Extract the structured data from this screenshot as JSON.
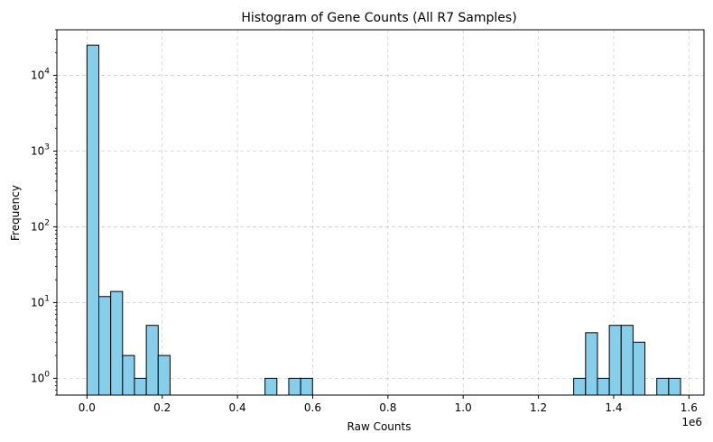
{
  "chart_data": {
    "type": "bar",
    "title": "Histogram of Gene Counts (All R7 Samples)",
    "xlabel": "Raw Counts",
    "ylabel": "Frequency",
    "x_offset_label": "1e6",
    "y_scale": "log",
    "ylim": [
      0.6,
      40000
    ],
    "xlim": [
      -0.08,
      1.64
    ],
    "grid": true,
    "bar_color": "#87ceeb",
    "bar_edge_color": "#000000",
    "bin_width": 0.03155,
    "bins": [
      {
        "x0": 0.0,
        "count": 25000
      },
      {
        "x0": 0.0316,
        "count": 12
      },
      {
        "x0": 0.0631,
        "count": 14
      },
      {
        "x0": 0.0947,
        "count": 2
      },
      {
        "x0": 0.1262,
        "count": 1
      },
      {
        "x0": 0.1578,
        "count": 5
      },
      {
        "x0": 0.1893,
        "count": 2
      },
      {
        "x0": 0.4733,
        "count": 1
      },
      {
        "x0": 0.5364,
        "count": 1
      },
      {
        "x0": 0.568,
        "count": 1
      },
      {
        "x0": 1.2937,
        "count": 1
      },
      {
        "x0": 1.3253,
        "count": 4
      },
      {
        "x0": 1.3568,
        "count": 1
      },
      {
        "x0": 1.3884,
        "count": 5
      },
      {
        "x0": 1.4199,
        "count": 5
      },
      {
        "x0": 1.4515,
        "count": 3
      },
      {
        "x0": 1.5146,
        "count": 1
      },
      {
        "x0": 1.5462,
        "count": 1
      }
    ],
    "x_ticks": [
      {
        "value": 0.0,
        "label": "0.0"
      },
      {
        "value": 0.2,
        "label": "0.2"
      },
      {
        "value": 0.4,
        "label": "0.4"
      },
      {
        "value": 0.6,
        "label": "0.6"
      },
      {
        "value": 0.8,
        "label": "0.8"
      },
      {
        "value": 1.0,
        "label": "1.0"
      },
      {
        "value": 1.2,
        "label": "1.2"
      },
      {
        "value": 1.4,
        "label": "1.4"
      },
      {
        "value": 1.6,
        "label": "1.6"
      }
    ],
    "y_ticks": [
      {
        "value": 1,
        "base": "10",
        "exp": "0"
      },
      {
        "value": 10,
        "base": "10",
        "exp": "1"
      },
      {
        "value": 100,
        "base": "10",
        "exp": "2"
      },
      {
        "value": 1000,
        "base": "10",
        "exp": "3"
      },
      {
        "value": 10000,
        "base": "10",
        "exp": "4"
      }
    ]
  }
}
